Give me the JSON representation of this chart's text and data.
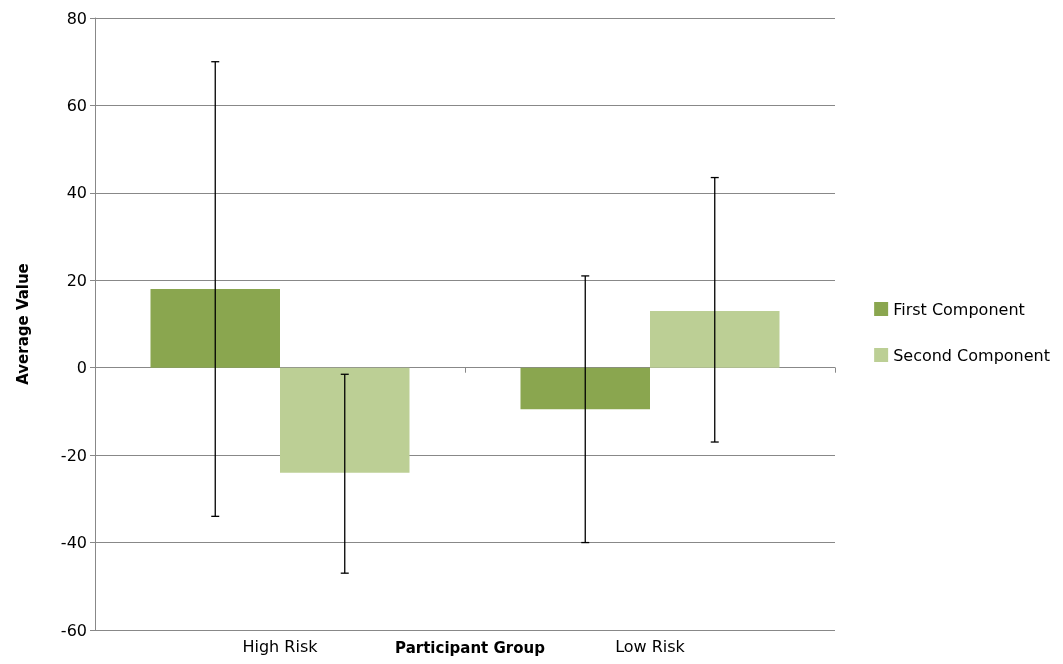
{
  "chart_data": {
    "type": "bar",
    "xlabel": "Participant Group",
    "ylabel": "Average Value",
    "categories": [
      "High Risk",
      "Low Risk"
    ],
    "series": [
      {
        "name": "First Component",
        "color": "#8aa64f",
        "values": [
          18,
          -9.5
        ],
        "errors": [
          [
            -34,
            70
          ],
          [
            -40,
            21
          ]
        ]
      },
      {
        "name": "Second Component",
        "color": "#bccf95",
        "values": [
          -24,
          13
        ],
        "errors": [
          [
            -47,
            -1.5
          ],
          [
            -17,
            43.5
          ]
        ]
      }
    ],
    "ylim": [
      -60,
      80
    ],
    "yticks": [
      -60,
      -40,
      -20,
      0,
      20,
      40,
      60,
      80
    ],
    "grid": "y",
    "legend": "right"
  }
}
